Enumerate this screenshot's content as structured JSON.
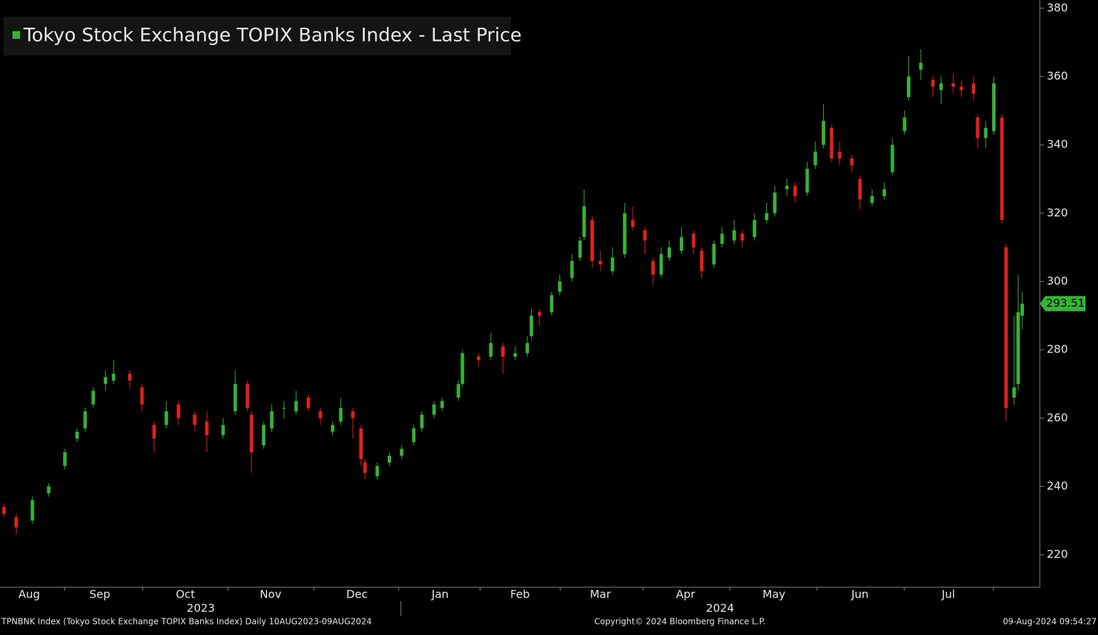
{
  "chart_data": {
    "type": "candlestick",
    "title": "Tokyo Stock Exchange TOPIX Banks Index - Last Price",
    "up_color": "#36b336",
    "down_color": "#e3201b",
    "x": [
      0,
      3,
      7,
      11,
      15,
      18,
      20,
      22,
      25,
      27,
      31,
      34,
      37,
      40,
      43,
      47,
      50,
      54,
      57,
      60,
      61,
      64,
      66,
      69,
      72,
      75,
      78,
      81,
      83,
      86,
      88,
      89,
      92,
      95,
      98,
      101,
      103,
      106,
      108,
      112,
      113,
      117,
      120,
      123,
      126,
      129,
      130,
      132,
      135,
      137,
      140,
      142,
      143,
      145,
      147,
      150,
      153,
      155,
      158,
      160,
      162,
      164,
      167,
      170,
      172,
      175,
      177,
      180,
      182,
      185,
      188,
      190,
      193,
      195,
      198,
      200,
      202,
      204,
      206,
      209,
      211,
      214,
      217,
      219,
      222,
      223,
      226,
      229,
      231,
      234,
      236,
      239,
      240,
      242,
      244,
      246,
      247,
      249,
      250,
      251
    ],
    "open": [
      234,
      231,
      230,
      238,
      246,
      254,
      257,
      264,
      270,
      271,
      273,
      269,
      258,
      258,
      264,
      261,
      259,
      255,
      262,
      270,
      261,
      252,
      257,
      263,
      262,
      266,
      262,
      256,
      259,
      262,
      257,
      247,
      243,
      247,
      249,
      253,
      257,
      261,
      263,
      266,
      270,
      278,
      278,
      281,
      278,
      279,
      284,
      291,
      291,
      297,
      301,
      307,
      313,
      318,
      306,
      303,
      308,
      318,
      315,
      306,
      302,
      307,
      309,
      314,
      309,
      305,
      311,
      312,
      314,
      313,
      318,
      320,
      327,
      328,
      326,
      334,
      340,
      345,
      338,
      336,
      330,
      323,
      325,
      332,
      344,
      354,
      362,
      359,
      356,
      358,
      357,
      358,
      348,
      342,
      344,
      348,
      310,
      266,
      270,
      290
    ],
    "high": [
      235,
      232,
      237,
      241,
      251,
      257,
      263,
      269,
      274,
      277,
      274,
      270,
      259,
      265,
      265,
      262,
      262,
      260,
      274,
      271,
      262,
      259,
      264,
      265,
      268,
      267,
      263,
      259,
      266,
      263,
      258,
      248,
      247,
      250,
      252,
      258,
      262,
      265,
      266,
      271,
      280,
      279,
      285,
      282,
      281,
      284,
      292,
      292,
      297,
      302,
      308,
      313,
      327,
      319,
      309,
      310,
      323,
      322,
      316,
      307,
      310,
      312,
      316,
      315,
      310,
      312,
      316,
      318,
      315,
      320,
      323,
      328,
      330,
      329,
      335,
      341,
      352,
      346,
      341,
      337,
      331,
      327,
      329,
      342,
      350,
      366,
      368,
      360,
      360,
      361,
      359,
      360,
      349,
      347,
      360,
      349,
      311,
      290,
      302,
      297
    ],
    "low": [
      231,
      226,
      229,
      237,
      245,
      253,
      256,
      263,
      268,
      270,
      269,
      262,
      250,
      257,
      258,
      256,
      250,
      254,
      261,
      262,
      244,
      251,
      256,
      260,
      261,
      262,
      258,
      255,
      258,
      254,
      246,
      242,
      242,
      246,
      248,
      252,
      256,
      260,
      262,
      265,
      269,
      275,
      277,
      273,
      277,
      278,
      283,
      287,
      290,
      296,
      300,
      306,
      312,
      304,
      303,
      302,
      307,
      315,
      308,
      299,
      301,
      306,
      308,
      308,
      301,
      304,
      310,
      311,
      310,
      312,
      317,
      319,
      325,
      323,
      325,
      333,
      339,
      335,
      334,
      332,
      321,
      322,
      324,
      331,
      343,
      353,
      359,
      354,
      352,
      355,
      354,
      353,
      339,
      339,
      343,
      317,
      259,
      264,
      268,
      286
    ],
    "close": [
      232,
      228,
      236,
      240,
      250,
      256,
      262,
      268,
      272,
      273,
      271,
      264,
      254,
      262,
      260,
      258,
      255,
      258,
      270,
      263,
      250,
      258,
      262,
      263,
      265,
      263,
      260,
      258,
      263,
      260,
      248,
      244,
      246,
      249,
      251,
      257,
      261,
      264,
      265,
      270,
      279,
      277,
      282,
      278,
      279,
      282,
      290,
      290,
      296,
      300,
      306,
      312,
      322,
      306,
      305,
      307,
      320,
      316,
      312,
      302,
      308,
      310,
      313,
      310,
      303,
      311,
      314,
      315,
      312,
      318,
      320,
      326,
      328,
      325,
      333,
      338,
      347,
      336,
      336,
      334,
      324,
      325,
      327,
      340,
      348,
      360,
      364,
      357,
      358,
      357,
      356,
      355,
      342,
      345,
      358,
      318,
      263,
      269,
      291,
      293.51
    ],
    "xlim": [
      -1,
      255
    ],
    "xticks": [
      {
        "value": 6.2,
        "label": "Aug"
      },
      {
        "value": 23.6,
        "label": "Sep"
      },
      {
        "value": 44.7,
        "label": "Oct"
      },
      {
        "value": 65.7,
        "label": "Nov"
      },
      {
        "value": 87,
        "label": "Dec"
      },
      {
        "value": 107.5,
        "label": "Jan"
      },
      {
        "value": 127.2,
        "label": "Feb"
      },
      {
        "value": 147,
        "label": "Mar"
      },
      {
        "value": 168,
        "label": "Apr"
      },
      {
        "value": 189.8,
        "label": "May"
      },
      {
        "value": 211,
        "label": "Jun"
      },
      {
        "value": 232.8,
        "label": "Jul"
      }
    ],
    "year_labels": [
      {
        "value": 48.5,
        "label": "2023"
      },
      {
        "value": 176.5,
        "label": "2024"
      }
    ],
    "ylim": [
      210.5,
      382.4
    ],
    "yticks": [
      220,
      240,
      260,
      280,
      300,
      320,
      340,
      360,
      380
    ],
    "footer_left": "TPNBNK Index (Tokyo Stock Exchange TOPIX Banks Index)  Daily 10AUG2023-09AUG2024",
    "footer_center": "Copyright© 2024 Bloomberg Finance L.P.",
    "footer_right": "09-Aug-2024 09:54:27"
  }
}
